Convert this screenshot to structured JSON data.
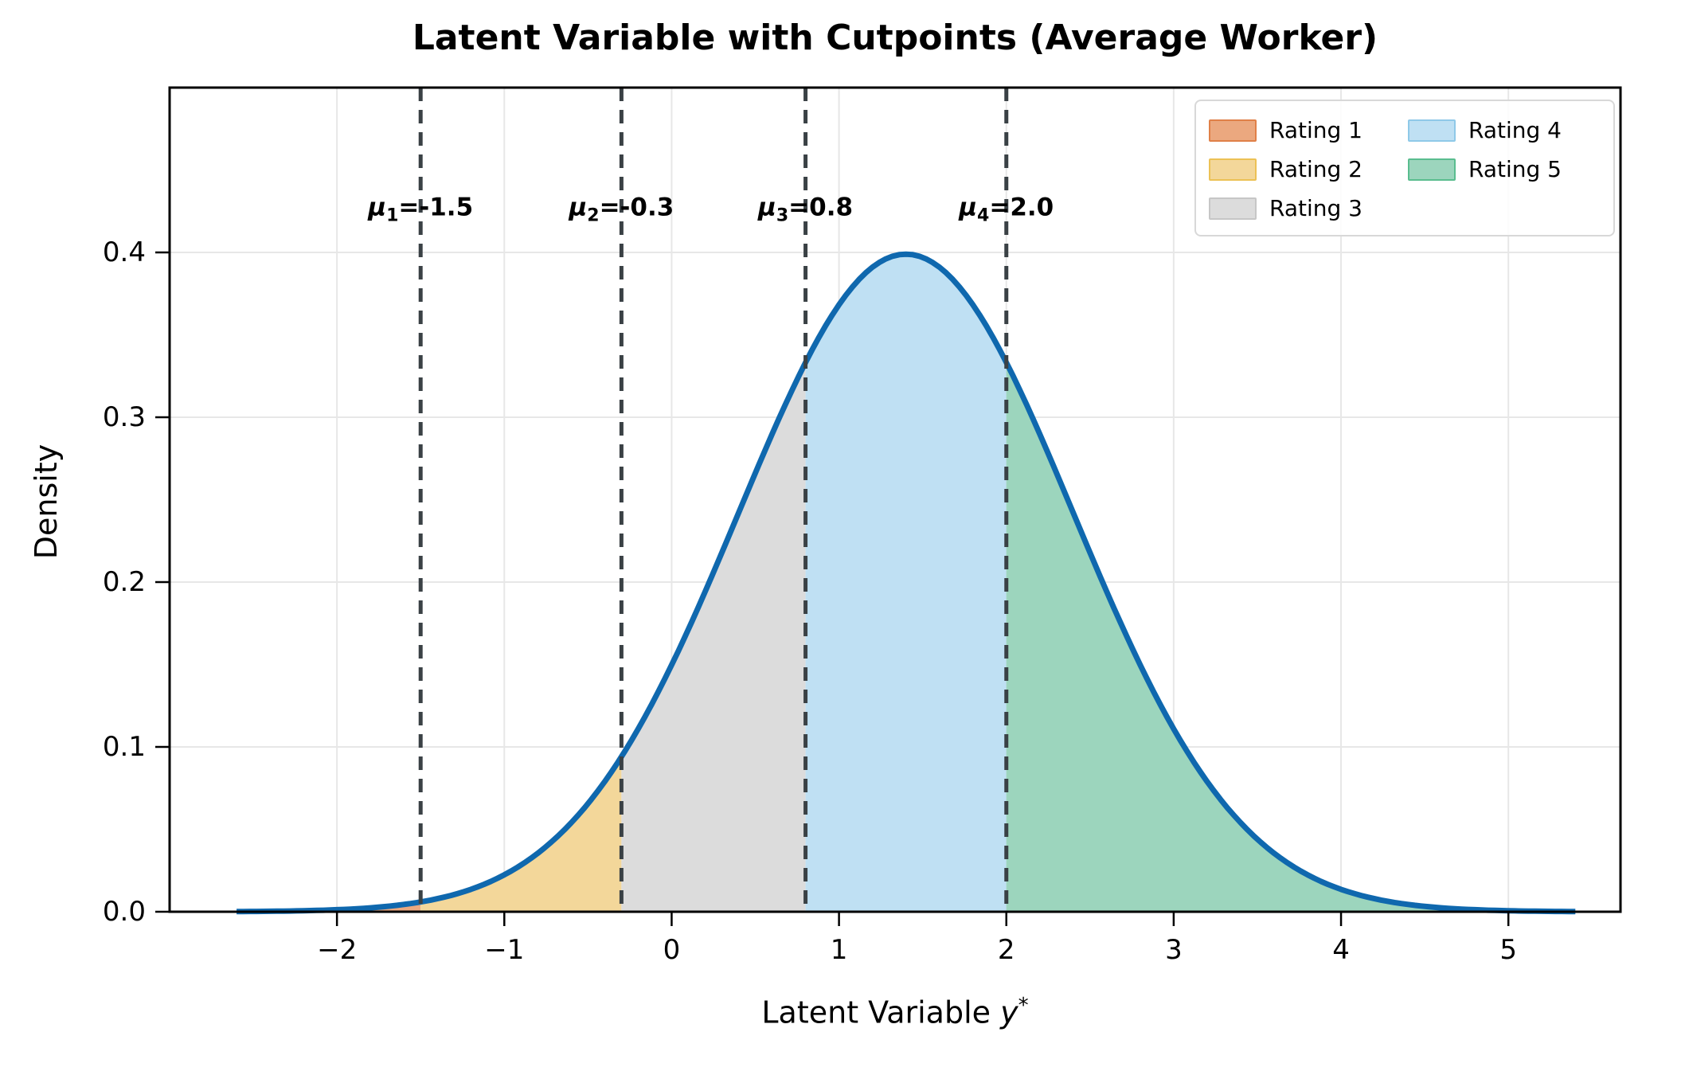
{
  "chart_data": {
    "type": "area",
    "title": "Latent Variable with Cutpoints (Average Worker)",
    "xlabel_text": "Latent Variable ",
    "xlabel_var": "y",
    "xlabel_sup": "*",
    "ylabel": "Density",
    "xlim": [
      -3.0,
      5.67
    ],
    "ylim": [
      0,
      0.5
    ],
    "xtick_values": [
      -2,
      -1,
      0,
      1,
      2,
      3,
      4,
      5
    ],
    "xtick_labels": [
      "−2",
      "−1",
      "0",
      "1",
      "2",
      "3",
      "4",
      "5"
    ],
    "ytick_values": [
      0.0,
      0.1,
      0.2,
      0.3,
      0.4
    ],
    "ytick_labels": [
      "0.0",
      "0.1",
      "0.2",
      "0.3",
      "0.4"
    ],
    "grid": true,
    "grid_color": "#e7e7e7",
    "curve": {
      "distribution": "normal",
      "mean": 1.4,
      "sd": 1.0,
      "x_start": -2.6,
      "x_end": 5.4,
      "peak_density": 0.4,
      "color": "#0f68ae",
      "linewidth": 7
    },
    "cutpoints": [
      {
        "symbol": "μ",
        "sub": "1",
        "value": -1.5,
        "value_label": "-1.5"
      },
      {
        "symbol": "μ",
        "sub": "2",
        "value": -0.3,
        "value_label": "-0.3"
      },
      {
        "symbol": "μ",
        "sub": "3",
        "value": 0.8,
        "value_label": "0.8"
      },
      {
        "symbol": "μ",
        "sub": "4",
        "value": 2.0,
        "value_label": "2.0"
      }
    ],
    "cutpoint_label_y": 0.426,
    "cutpoint_line": {
      "color": "#3a4145",
      "width": 5,
      "dash": "17 11"
    },
    "regions": [
      {
        "label": "Rating 1",
        "x_from": -2.6,
        "x_to": -1.5,
        "fill": "#eba87f",
        "edge": "#e08048"
      },
      {
        "label": "Rating 2",
        "x_from": -1.5,
        "x_to": -0.3,
        "fill": "#f3d79a",
        "edge": "#ecc155"
      },
      {
        "label": "Rating 3",
        "x_from": -0.3,
        "x_to": 0.8,
        "fill": "#dcdcdc",
        "edge": "#c6c6c6"
      },
      {
        "label": "Rating 4",
        "x_from": 0.8,
        "x_to": 2.0,
        "fill": "#bfe0f3",
        "edge": "#8fc9e8"
      },
      {
        "label": "Rating 5",
        "x_from": 2.0,
        "x_to": 5.4,
        "fill": "#9cd5bd",
        "edge": "#5abd8f"
      }
    ],
    "legend": {
      "position": "upper right",
      "columns": 2,
      "items": [
        {
          "label": "Rating 1",
          "fill": "#eba87f",
          "edge": "#e08048"
        },
        {
          "label": "Rating 2",
          "fill": "#f3d79a",
          "edge": "#ecc155"
        },
        {
          "label": "Rating 3",
          "fill": "#dcdcdc",
          "edge": "#c6c6c6"
        },
        {
          "label": "Rating 4",
          "fill": "#bfe0f3",
          "edge": "#8fc9e8"
        },
        {
          "label": "Rating 5",
          "fill": "#9cd5bd",
          "edge": "#5abd8f"
        }
      ]
    },
    "spine_color": "#000000",
    "background": "#ffffff"
  }
}
